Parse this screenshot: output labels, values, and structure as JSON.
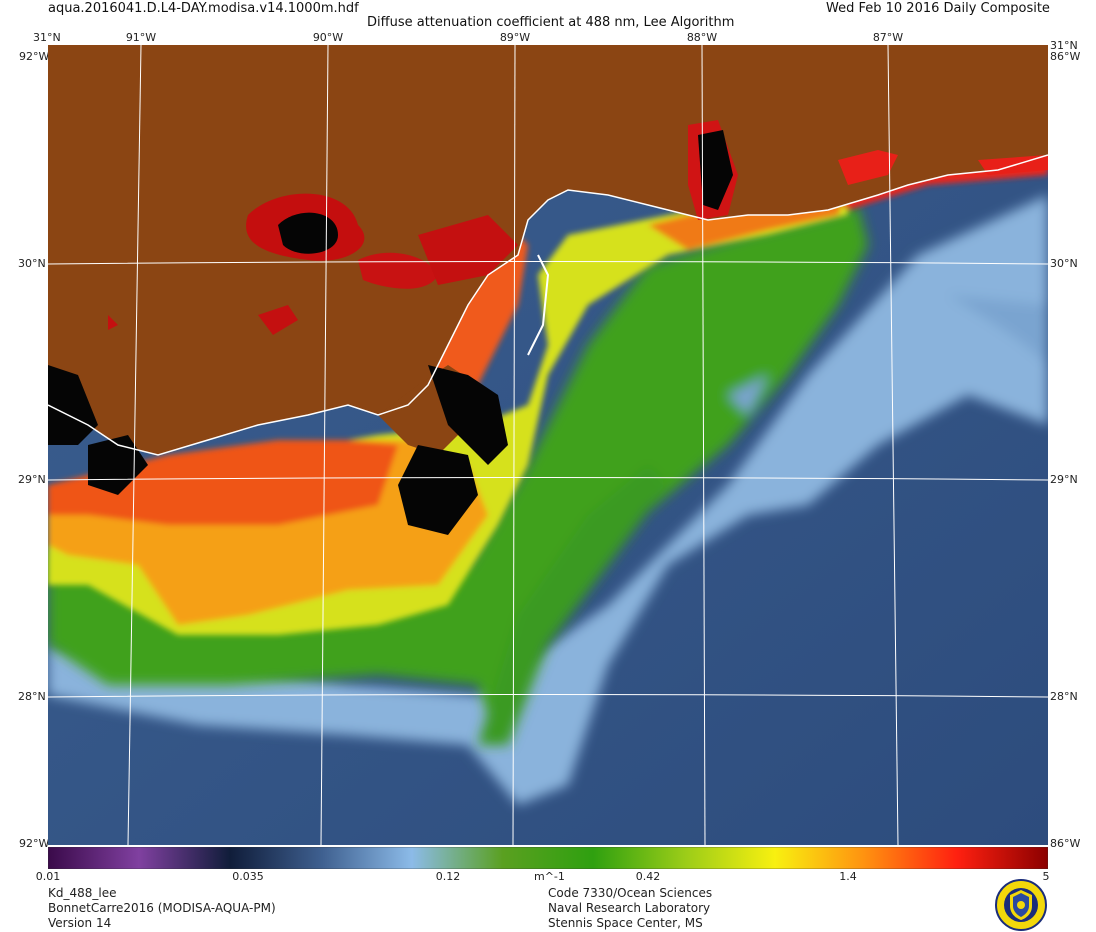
{
  "header": {
    "filename": "aqua.2016041.D.L4-DAY.modisa.v14.1000m.hdf",
    "title": "Diffuse attenuation coefficient at 488 nm, Lee Algorithm",
    "date": "Wed Feb 10 2016 Daily Composite"
  },
  "map": {
    "lon_labels": [
      "91°W",
      "90°W",
      "89°W",
      "88°W",
      "87°W"
    ],
    "lat_labels": [
      "30°N",
      "29°N",
      "28°N"
    ],
    "corner_top_left": "31°N",
    "corner_top_right": "31°N",
    "corner_top_right_lon": "86°W",
    "corner_top_left_lon": "92°W",
    "corner_bottom_left": "92°W",
    "corner_bottom_right": "86°W",
    "colors": {
      "land": "#8B4513",
      "deep_water": "#2f4f80",
      "shelf_water": "#8fb4dc",
      "green": "#3c9a1e",
      "yellow": "#e7e81c",
      "orange": "#f49a1e",
      "red": "#e8201c",
      "dark_red": "#9c0e0e",
      "coastline": "#ffffff"
    }
  },
  "colorbar": {
    "ticks": [
      "0.01",
      "0.035",
      "0.12",
      "0.42",
      "1.4",
      "5"
    ],
    "unit": "m^-1",
    "colors": [
      "#3a0a4a",
      "#8040a0",
      "#101d3a",
      "#3e5f8f",
      "#8cbbe8",
      "#5aa020",
      "#2fa010",
      "#9acc18",
      "#f8f010",
      "#ff9010",
      "#ff2010",
      "#8b0000"
    ]
  },
  "footer": {
    "left": [
      "Kd_488_lee",
      "BonnetCarre2016 (MODISA-AQUA-PM)",
      "Version 14"
    ],
    "center": [
      "Code 7330/Ocean Sciences",
      "Naval Research Laboratory",
      "Stennis Space Center, MS"
    ]
  },
  "logo": {
    "icon": "nrl-seal-icon"
  }
}
